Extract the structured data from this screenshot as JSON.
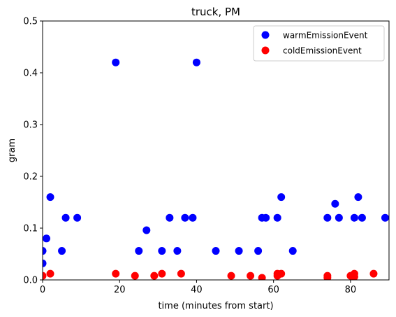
{
  "chart_data": {
    "type": "scatter",
    "title": "truck, PM",
    "xlabel": "time (minutes from start)",
    "ylabel": "gram",
    "xlim": [
      0,
      90
    ],
    "ylim": [
      0,
      0.5
    ],
    "x_ticks": [
      0,
      20,
      40,
      60,
      80
    ],
    "y_ticks": [
      0.0,
      0.1,
      0.2,
      0.3,
      0.4,
      0.5
    ],
    "x_tick_labels": [
      "0",
      "20",
      "40",
      "60",
      "80"
    ],
    "y_tick_labels": [
      "0.0",
      "0.1",
      "0.2",
      "0.3",
      "0.4",
      "0.5"
    ],
    "grid": false,
    "legend_position": "top-right",
    "series": [
      {
        "name": "warmEmissionEvent",
        "color": "#0000ff",
        "points": [
          [
            0,
            0.056
          ],
          [
            0,
            0.032
          ],
          [
            1,
            0.08
          ],
          [
            2,
            0.16
          ],
          [
            5,
            0.056
          ],
          [
            6,
            0.12
          ],
          [
            9,
            0.12
          ],
          [
            19,
            0.42
          ],
          [
            25,
            0.056
          ],
          [
            27,
            0.096
          ],
          [
            31,
            0.056
          ],
          [
            33,
            0.12
          ],
          [
            35,
            0.056
          ],
          [
            37,
            0.12
          ],
          [
            39,
            0.12
          ],
          [
            40,
            0.42
          ],
          [
            45,
            0.056
          ],
          [
            51,
            0.056
          ],
          [
            56,
            0.056
          ],
          [
            57,
            0.12
          ],
          [
            58,
            0.12
          ],
          [
            61,
            0.12
          ],
          [
            62,
            0.16
          ],
          [
            65,
            0.056
          ],
          [
            74,
            0.12
          ],
          [
            76,
            0.147
          ],
          [
            77,
            0.12
          ],
          [
            81,
            0.12
          ],
          [
            82,
            0.16
          ],
          [
            83,
            0.12
          ],
          [
            89,
            0.12
          ]
        ]
      },
      {
        "name": "coldEmissionEvent",
        "color": "#ff0000",
        "points": [
          [
            0,
            0.008
          ],
          [
            2,
            0.012
          ],
          [
            19,
            0.012
          ],
          [
            24,
            0.008
          ],
          [
            29,
            0.008
          ],
          [
            31,
            0.012
          ],
          [
            36,
            0.012
          ],
          [
            49,
            0.008
          ],
          [
            54,
            0.008
          ],
          [
            57,
            0.004
          ],
          [
            61,
            0.008
          ],
          [
            61,
            0.012
          ],
          [
            62,
            0.012
          ],
          [
            74,
            0.004
          ],
          [
            74,
            0.008
          ],
          [
            80,
            0.008
          ],
          [
            81,
            0.012
          ],
          [
            81,
            0.006
          ],
          [
            86,
            0.012
          ]
        ]
      }
    ]
  }
}
